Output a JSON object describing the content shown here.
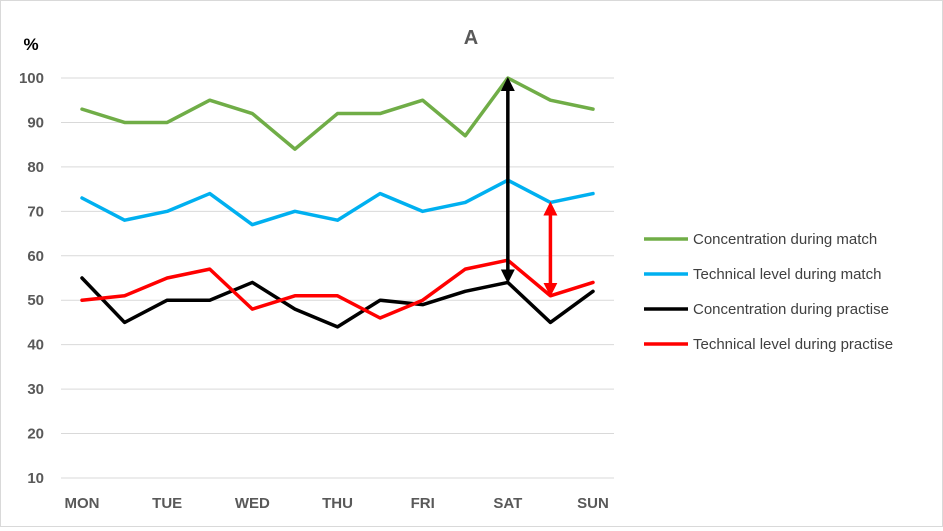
{
  "chart_data": {
    "type": "line",
    "title": "A",
    "ylabel": "%",
    "xlabel": "",
    "ylim": [
      10,
      100
    ],
    "yticks": [
      10,
      20,
      30,
      40,
      50,
      60,
      70,
      80,
      90,
      100
    ],
    "grid": "horizontal",
    "legend_position": "right",
    "x_tick_labels": [
      "MON",
      "TUE",
      "WED",
      "THU",
      "FRI",
      "SAT",
      "SUN"
    ],
    "x": [
      1,
      2,
      3,
      4,
      5,
      6,
      7,
      8,
      9,
      10,
      11,
      12,
      13
    ],
    "series": [
      {
        "name": "Concentration during match",
        "color": "#70ad47",
        "values": [
          93,
          90,
          90,
          95,
          92,
          84,
          92,
          92,
          95,
          87,
          100,
          95,
          93
        ]
      },
      {
        "name": "Technical level during match",
        "color": "#00b0f0",
        "values": [
          73,
          68,
          70,
          74,
          67,
          70,
          68,
          74,
          70,
          72,
          77,
          72,
          74
        ]
      },
      {
        "name": "Concentration during practise",
        "color": "#000000",
        "values": [
          55,
          45,
          50,
          50,
          54,
          48,
          44,
          50,
          49,
          52,
          54,
          45,
          52
        ]
      },
      {
        "name": "Technical level during practise",
        "color": "#ff0000",
        "values": [
          50,
          51,
          55,
          57,
          48,
          51,
          51,
          46,
          50,
          57,
          59,
          51,
          54
        ]
      }
    ],
    "annotations": [
      {
        "type": "double-arrow",
        "color": "#000000",
        "x": 11,
        "from": 54,
        "to": 100
      },
      {
        "type": "double-arrow",
        "color": "#ff0000",
        "x": 12,
        "from": 51,
        "to": 72
      }
    ]
  }
}
